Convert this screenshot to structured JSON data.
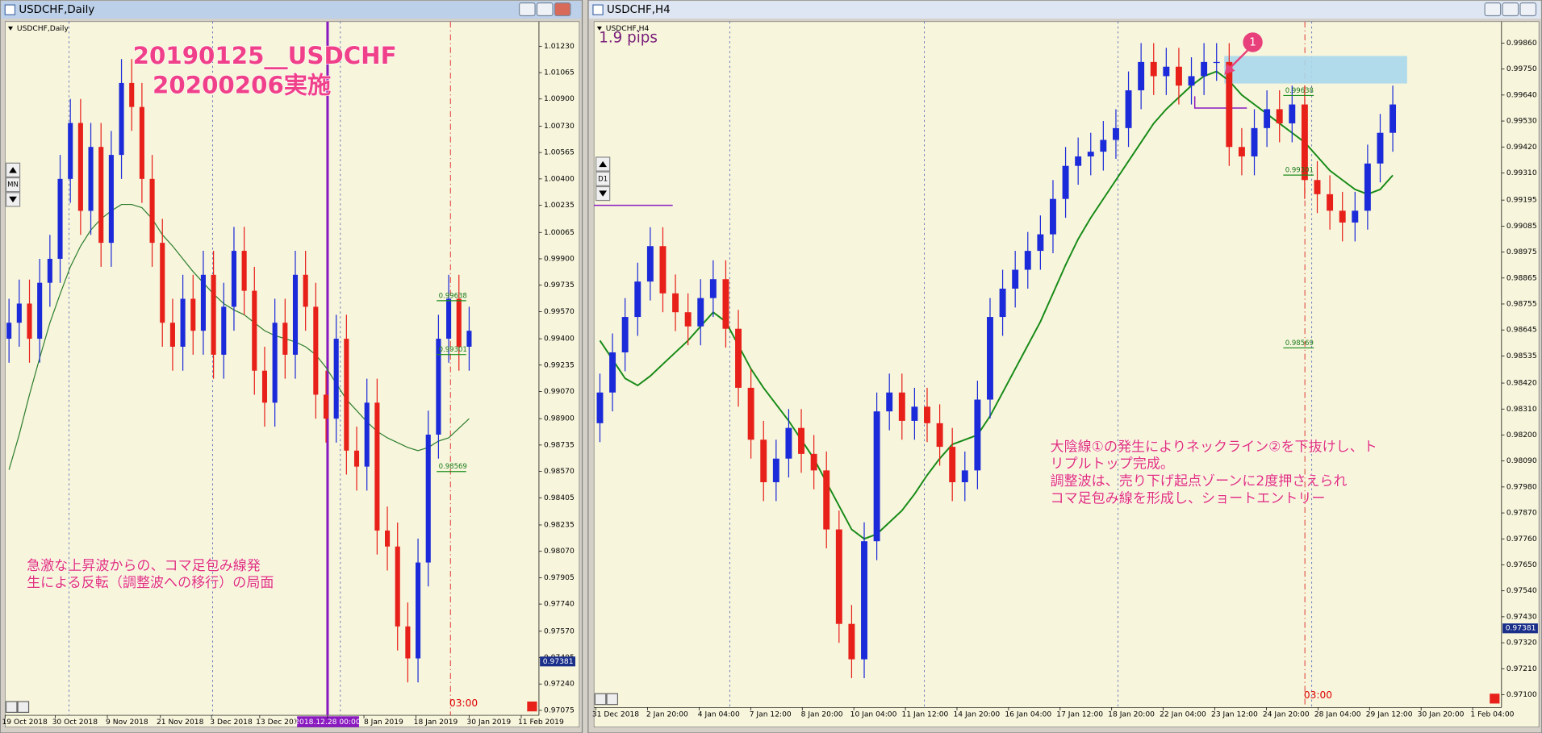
{
  "windows": [
    {
      "title": "USDCHF,Daily",
      "chart": {
        "type": "candlestick",
        "label": "USDCHF,Daily",
        "button": "MN",
        "ylim": [
          0.97044,
          1.01384
        ],
        "yticks": [
          {
            "value": 1.0123,
            "label": "1.01230"
          },
          1.01065,
          {
            "value": 1.009,
            "label": "1.00900"
          },
          {
            "value": 1.0073,
            "label": "1.00730"
          },
          1.00565,
          {
            "value": 1.004,
            "label": "1.00400"
          },
          1.00235,
          1.00065,
          {
            "value": 0.999,
            "label": "0.99900"
          },
          0.99735,
          {
            "value": 0.9957,
            "label": "0.99570"
          },
          {
            "value": 0.994,
            "label": "0.99400"
          },
          0.99235,
          {
            "value": 0.9907,
            "label": "0.99070"
          },
          {
            "value": 0.989,
            "label": "0.98900"
          },
          0.98735,
          {
            "value": 0.9857,
            "label": "0.98570"
          },
          0.98405,
          0.98235,
          {
            "value": 0.9807,
            "label": "0.98070"
          },
          0.97905,
          {
            "value": 0.9774,
            "label": "0.97740"
          },
          {
            "value": 0.9757,
            "label": "0.97570"
          },
          0.97405,
          {
            "value": 0.9724,
            "label": "0.97240"
          },
          0.97075
        ],
        "xtick_labels": [
          "19 Oct 2018",
          "30 Oct 2018",
          "9 Nov 2018",
          "21 Nov 2018",
          "3 Dec 2018",
          "13 Dec 2018",
          "2018.12.28 00:00",
          "8 Jan 2019",
          "18 Jan 2019",
          "30 Jan 2019",
          "11 Feb 2019"
        ],
        "open": [
          0.994,
          0.995,
          0.9962,
          0.994,
          0.9975,
          0.999,
          1.004,
          1.0075,
          1.002,
          1.006,
          1.0,
          1.0055,
          1.01,
          1.0085,
          1.004,
          1.0,
          0.995,
          0.9935,
          0.9965,
          0.9945,
          0.998,
          0.993,
          0.996,
          0.9995,
          0.997,
          0.992,
          0.99,
          0.995,
          0.993,
          0.998,
          0.996,
          0.9905,
          0.989,
          0.994,
          0.987,
          0.986,
          0.99,
          0.982,
          0.981,
          0.976,
          0.974,
          0.98,
          0.988,
          0.994,
          0.9965,
          0.9935
        ],
        "high": [
          0.9965,
          0.9977,
          0.9977,
          0.999,
          1.0005,
          1.0055,
          1.009,
          1.009,
          1.0075,
          1.0075,
          1.007,
          1.0115,
          1.0115,
          1.01,
          1.0055,
          1.0015,
          0.9965,
          0.998,
          0.998,
          0.9995,
          0.9995,
          0.9975,
          1.001,
          1.001,
          0.9985,
          0.9935,
          0.9965,
          0.9965,
          0.9995,
          0.9995,
          0.9975,
          0.992,
          0.9955,
          0.9955,
          0.9885,
          0.9915,
          0.9915,
          0.9835,
          0.9825,
          0.9775,
          0.9815,
          0.9895,
          0.9955,
          0.998,
          0.998,
          0.996
        ],
        "low": [
          0.9925,
          0.9935,
          0.9925,
          0.9925,
          0.996,
          0.9975,
          1.0025,
          1.0005,
          1.0005,
          0.9985,
          0.9985,
          1.004,
          1.007,
          1.0025,
          0.9985,
          0.9935,
          0.992,
          0.992,
          0.993,
          0.993,
          0.9915,
          0.9915,
          0.9945,
          0.9955,
          0.9905,
          0.9885,
          0.9885,
          0.9915,
          0.9915,
          0.9945,
          0.989,
          0.9875,
          0.9875,
          0.9855,
          0.9845,
          0.9845,
          0.9805,
          0.9795,
          0.9745,
          0.9725,
          0.9725,
          0.9785,
          0.9865,
          0.9925,
          0.992,
          0.992
        ],
        "close": [
          0.995,
          0.9962,
          0.994,
          0.9975,
          0.999,
          1.004,
          1.0075,
          1.002,
          1.006,
          1.0,
          1.0055,
          1.01,
          1.0085,
          1.004,
          1.0,
          0.995,
          0.9935,
          0.9965,
          0.9945,
          0.998,
          0.993,
          0.996,
          0.9995,
          0.997,
          0.992,
          0.99,
          0.995,
          0.993,
          0.998,
          0.996,
          0.9905,
          0.989,
          0.994,
          0.987,
          0.986,
          0.99,
          0.982,
          0.981,
          0.976,
          0.974,
          0.98,
          0.988,
          0.994,
          0.9965,
          0.9935,
          0.9945
        ],
        "ma": [
          0.9858,
          0.988,
          0.9905,
          0.9928,
          0.995,
          0.9968,
          0.9985,
          0.9998,
          1.0008,
          1.0015,
          1.002,
          1.0024,
          1.0024,
          1.0022,
          1.0015,
          1.0005,
          0.9998,
          0.999,
          0.9982,
          0.9975,
          0.9968,
          0.9962,
          0.9958,
          0.9955,
          0.995,
          0.9945,
          0.9942,
          0.994,
          0.9938,
          0.9935,
          0.993,
          0.9922,
          0.9912,
          0.9902,
          0.9895,
          0.9888,
          0.9882,
          0.9878,
          0.9875,
          0.9872,
          0.987,
          0.9872,
          0.9876,
          0.9878,
          0.9884,
          0.989
        ],
        "levels": [
          0.99638,
          0.99301,
          0.98569
        ],
        "level_time": "03:00",
        "current_price": 0.97381,
        "title_lines": [
          "20190125__USDCHF",
          "20200206実施"
        ],
        "note_lines": [
          "急激な上昇波からの、コマ足包み線発",
          "生による反転（調整波への移行）の局面"
        ]
      }
    },
    {
      "title": "USDCHF,H4",
      "chart": {
        "type": "candlestick",
        "label": "USDCHF,H4",
        "button": "D1",
        "pips": "1.9 pips",
        "marker": "1",
        "ylim": [
          0.97046,
          0.99951
        ],
        "yticks": [
          {
            "value": 0.9986,
            "label": "0.99860"
          },
          {
            "value": 0.9975,
            "label": "0.99750"
          },
          {
            "value": 0.9964,
            "label": "0.99640"
          },
          {
            "value": 0.9953,
            "label": "0.99530"
          },
          {
            "value": 0.9942,
            "label": "0.99420"
          },
          {
            "value": 0.9931,
            "label": "0.99310"
          },
          0.99195,
          0.99085,
          0.98975,
          0.98865,
          0.98755,
          0.98645,
          0.98535,
          {
            "value": 0.9842,
            "label": "0.98420"
          },
          {
            "value": 0.9831,
            "label": "0.98310"
          },
          {
            "value": 0.982,
            "label": "0.98200"
          },
          {
            "value": 0.9809,
            "label": "0.98090"
          },
          {
            "value": 0.9798,
            "label": "0.97980"
          },
          {
            "value": 0.9787,
            "label": "0.97870"
          },
          {
            "value": 0.9776,
            "label": "0.97760"
          },
          {
            "value": 0.9765,
            "label": "0.97650"
          },
          {
            "value": 0.9754,
            "label": "0.97540"
          },
          {
            "value": 0.9743,
            "label": "0.97430"
          },
          {
            "value": 0.9732,
            "label": "0.97320"
          },
          {
            "value": 0.9721,
            "label": "0.97210"
          },
          {
            "value": 0.971,
            "label": "0.97100"
          }
        ],
        "xtick_labels": [
          "31 Dec 2018",
          "2 Jan 20:00",
          "4 Jan 04:00",
          "7 Jan 12:00",
          "8 Jan 20:00",
          "10 Jan 04:00",
          "11 Jan 12:00",
          "14 Jan 20:00",
          "16 Jan 04:00",
          "17 Jan 12:00",
          "18 Jan 20:00",
          "22 Jan 04:00",
          "23 Jan 12:00",
          "24 Jan 20:00",
          "28 Jan 04:00",
          "29 Jan 12:00",
          "30 Jan 20:00",
          "1 Feb 04:00"
        ],
        "open": [
          0.9825,
          0.9838,
          0.9855,
          0.987,
          0.9885,
          0.99,
          0.988,
          0.9872,
          0.9866,
          0.9878,
          0.9886,
          0.9865,
          0.984,
          0.9818,
          0.98,
          0.981,
          0.9823,
          0.9812,
          0.9805,
          0.978,
          0.974,
          0.9725,
          0.9775,
          0.983,
          0.9838,
          0.9826,
          0.9832,
          0.9825,
          0.9815,
          0.98,
          0.9805,
          0.9835,
          0.987,
          0.9882,
          0.989,
          0.9898,
          0.9905,
          0.992,
          0.9934,
          0.9938,
          0.994,
          0.9945,
          0.995,
          0.9966,
          0.9978,
          0.9972,
          0.9976,
          0.9968,
          0.9972,
          0.9978,
          0.9978,
          0.9942,
          0.9938,
          0.995,
          0.9958,
          0.9952,
          0.996,
          0.9928,
          0.9922,
          0.9915,
          0.991,
          0.9915,
          0.9935,
          0.9948
        ],
        "high": [
          0.9846,
          0.9863,
          0.9878,
          0.9893,
          0.9908,
          0.9908,
          0.9888,
          0.988,
          0.9886,
          0.9894,
          0.9894,
          0.9873,
          0.9848,
          0.9826,
          0.9818,
          0.9831,
          0.9831,
          0.982,
          0.9813,
          0.9788,
          0.9748,
          0.9783,
          0.9838,
          0.9846,
          0.9846,
          0.984,
          0.984,
          0.9833,
          0.9823,
          0.9813,
          0.9843,
          0.9878,
          0.989,
          0.9898,
          0.9906,
          0.9913,
          0.9928,
          0.9942,
          0.9946,
          0.9948,
          0.9953,
          0.9958,
          0.9974,
          0.9986,
          0.9986,
          0.9984,
          0.9984,
          0.998,
          0.9986,
          0.9986,
          0.9986,
          0.995,
          0.9958,
          0.9966,
          0.9966,
          0.9968,
          0.9968,
          0.9936,
          0.993,
          0.9923,
          0.9923,
          0.9943,
          0.9956,
          0.9968
        ],
        "low": [
          0.9817,
          0.983,
          0.9847,
          0.9862,
          0.9877,
          0.9872,
          0.9864,
          0.9858,
          0.9858,
          0.987,
          0.9857,
          0.9832,
          0.981,
          0.9792,
          0.9792,
          0.9802,
          0.9804,
          0.9797,
          0.9772,
          0.9732,
          0.9717,
          0.9717,
          0.9767,
          0.9822,
          0.9818,
          0.9818,
          0.9817,
          0.9807,
          0.9792,
          0.9792,
          0.9797,
          0.9827,
          0.9862,
          0.9874,
          0.9882,
          0.989,
          0.9897,
          0.9912,
          0.9926,
          0.993,
          0.9932,
          0.9937,
          0.9942,
          0.9958,
          0.9964,
          0.9964,
          0.996,
          0.996,
          0.9964,
          0.997,
          0.9934,
          0.993,
          0.993,
          0.9942,
          0.9944,
          0.9944,
          0.992,
          0.9914,
          0.9907,
          0.9902,
          0.9902,
          0.9907,
          0.9927,
          0.994
        ],
        "close": [
          0.9838,
          0.9855,
          0.987,
          0.9885,
          0.99,
          0.988,
          0.9872,
          0.9866,
          0.9878,
          0.9886,
          0.9865,
          0.984,
          0.9818,
          0.98,
          0.981,
          0.9823,
          0.9812,
          0.9805,
          0.978,
          0.974,
          0.9725,
          0.9775,
          0.983,
          0.9838,
          0.9826,
          0.9832,
          0.9825,
          0.9815,
          0.98,
          0.9805,
          0.9835,
          0.987,
          0.9882,
          0.989,
          0.9898,
          0.9905,
          0.992,
          0.9934,
          0.9938,
          0.994,
          0.9945,
          0.995,
          0.9966,
          0.9978,
          0.9972,
          0.9976,
          0.9968,
          0.9972,
          0.9978,
          0.9978,
          0.9942,
          0.9938,
          0.995,
          0.9958,
          0.9952,
          0.996,
          0.9928,
          0.9922,
          0.9915,
          0.991,
          0.9915,
          0.9935,
          0.9948,
          0.996
        ],
        "ma": [
          0.986,
          0.9852,
          0.9844,
          0.9841,
          0.9845,
          0.985,
          0.9855,
          0.986,
          0.9866,
          0.9872,
          0.9868,
          0.9858,
          0.9848,
          0.984,
          0.9833,
          0.9826,
          0.9818,
          0.981,
          0.98,
          0.979,
          0.978,
          0.9776,
          0.9778,
          0.9783,
          0.9788,
          0.9795,
          0.9803,
          0.981,
          0.9816,
          0.9818,
          0.982,
          0.9828,
          0.9838,
          0.9848,
          0.9858,
          0.9868,
          0.988,
          0.9892,
          0.9903,
          0.9912,
          0.992,
          0.9928,
          0.9936,
          0.9944,
          0.9952,
          0.9958,
          0.9963,
          0.9968,
          0.9972,
          0.9974,
          0.997,
          0.9964,
          0.996,
          0.9956,
          0.9952,
          0.9948,
          0.9944,
          0.9938,
          0.9932,
          0.9928,
          0.9924,
          0.9922,
          0.9924,
          0.993
        ],
        "levels": [
          0.99638,
          0.99301,
          0.98569
        ],
        "level_time": "03:00",
        "current_price": 0.97381,
        "note_lines": [
          "大陰線①の発生によりネックライン②を下抜けし、ト",
          "リプルトップ完成。",
          "調整波は、売り下げ起点ゾーンに2度押さえられ",
          "コマ足包み線を形成し、ショートエントリー"
        ]
      }
    }
  ]
}
